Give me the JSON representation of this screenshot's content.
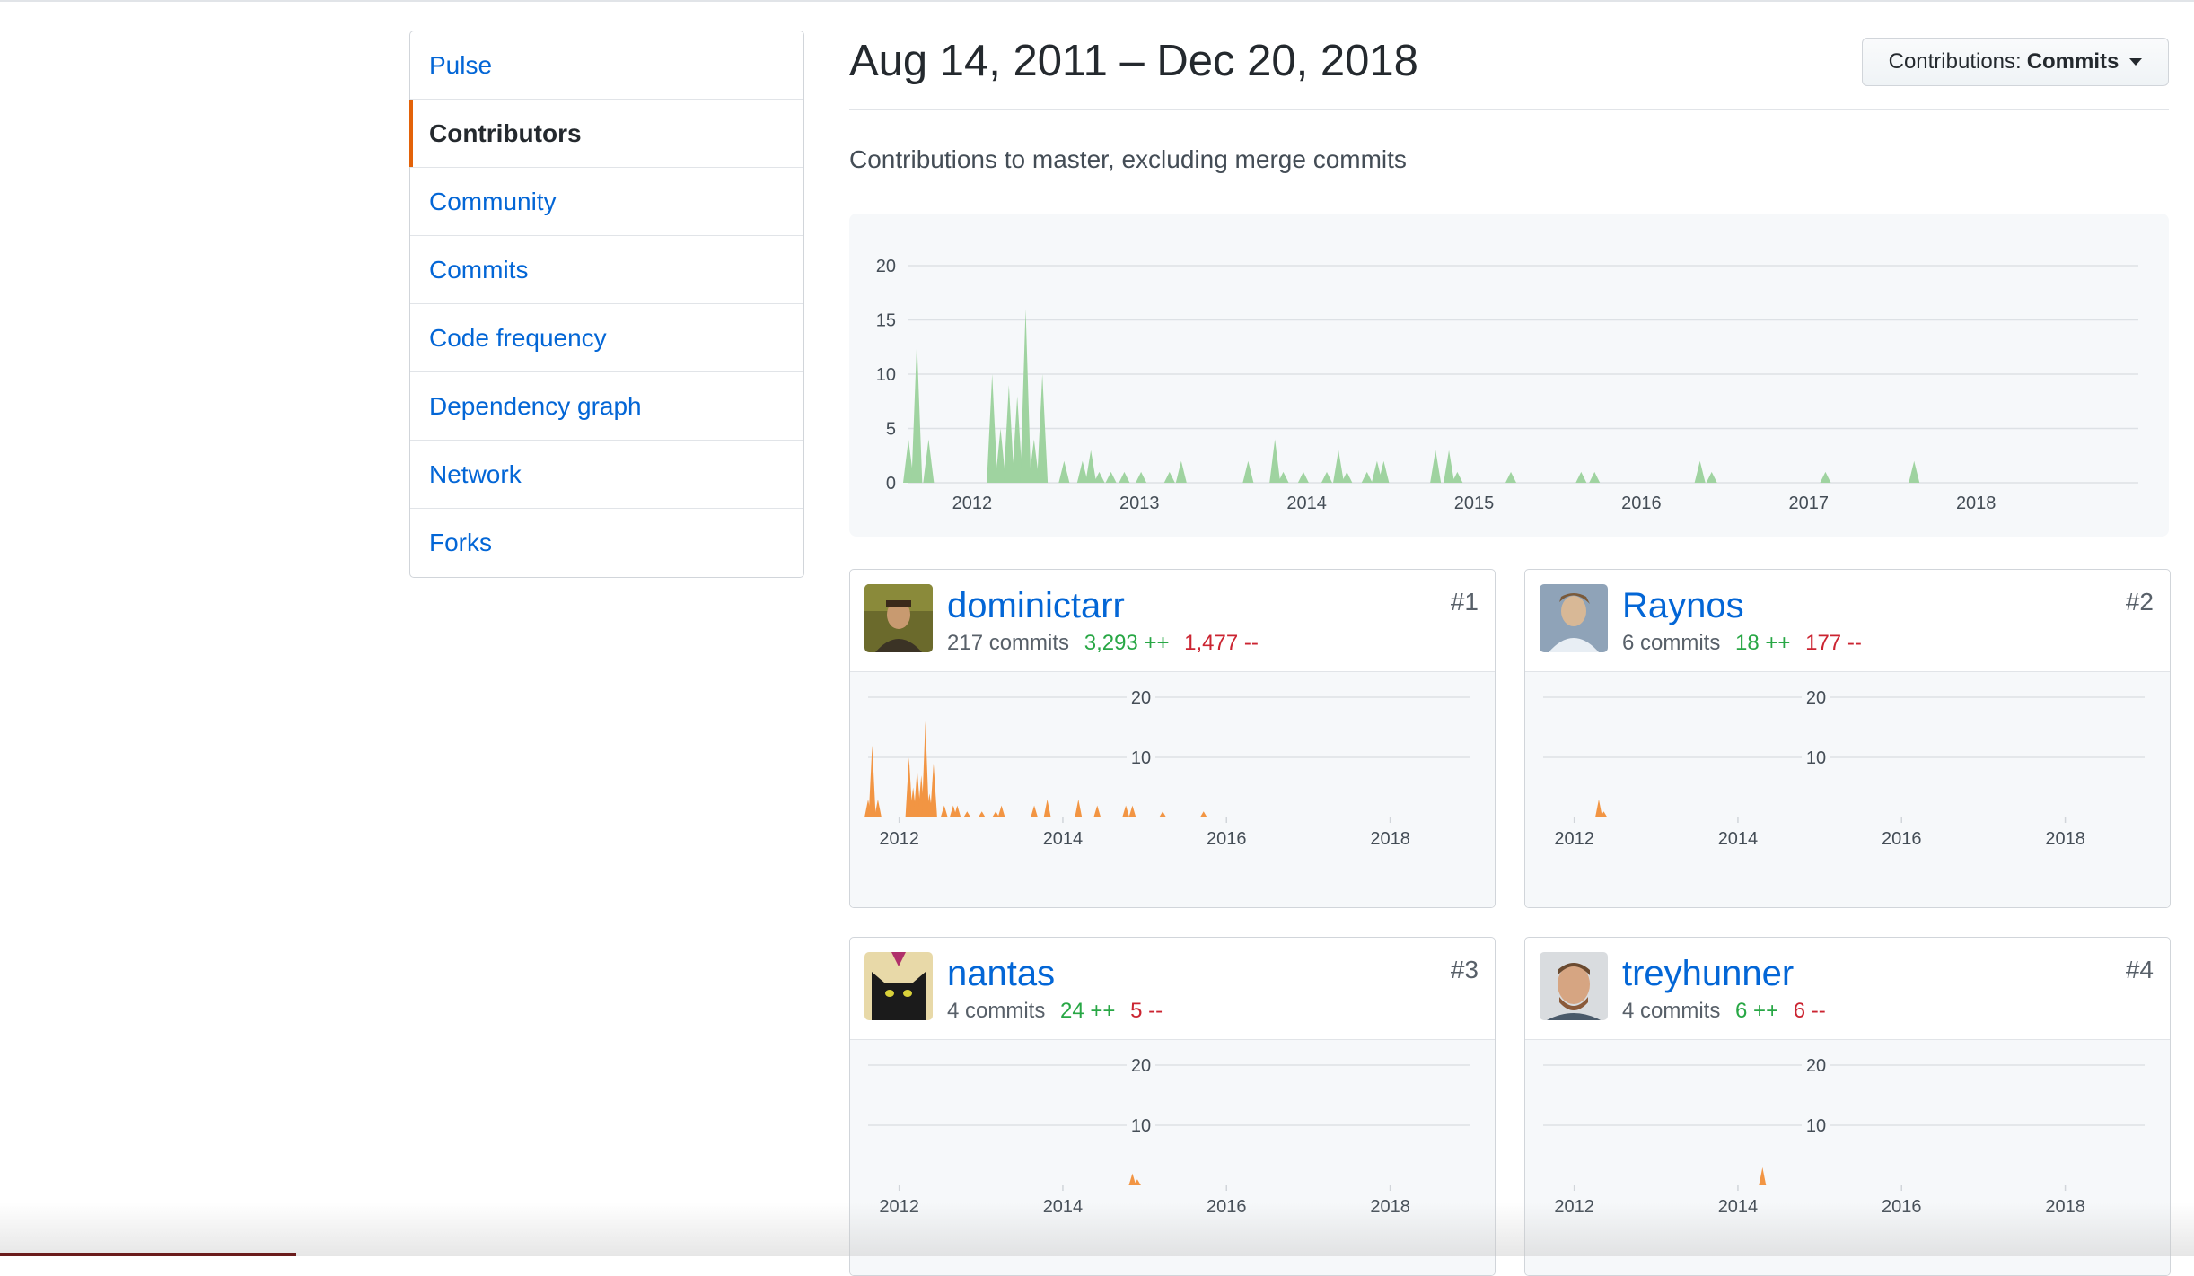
{
  "sidebar": {
    "items": [
      {
        "label": "Pulse",
        "selected": false
      },
      {
        "label": "Contributors",
        "selected": true
      },
      {
        "label": "Community",
        "selected": false
      },
      {
        "label": "Commits",
        "selected": false
      },
      {
        "label": "Code frequency",
        "selected": false
      },
      {
        "label": "Dependency graph",
        "selected": false
      },
      {
        "label": "Network",
        "selected": false
      },
      {
        "label": "Forks",
        "selected": false
      }
    ]
  },
  "header": {
    "date_range": "Aug 14, 2011 – Dec 20, 2018",
    "contributions_label": "Contributions:",
    "contributions_value": "Commits",
    "subtitle": "Contributions to master, excluding merge commits"
  },
  "colors": {
    "overall": "#9fd3a0",
    "contributor": "#f29543",
    "link": "#0366d6",
    "additions": "#28a745",
    "deletions": "#cb2431",
    "selected_accent": "#e36209"
  },
  "chart_data": [
    {
      "type": "area",
      "title": "",
      "xlabel": "",
      "ylabel": "",
      "x_range": [
        2011.62,
        2018.97
      ],
      "ylim": [
        0,
        20
      ],
      "yticks": [
        0,
        5,
        10,
        15,
        20
      ],
      "xticks": [
        2012,
        2013,
        2014,
        2015,
        2016,
        2017,
        2018
      ],
      "grid": true,
      "series": [
        {
          "points": [
            [
              2011.62,
              4
            ],
            [
              2011.67,
              13
            ],
            [
              2011.74,
              4
            ],
            [
              2012.12,
              10
            ],
            [
              2012.17,
              5
            ],
            [
              2012.22,
              9
            ],
            [
              2012.27,
              8
            ],
            [
              2012.32,
              16
            ],
            [
              2012.37,
              4
            ],
            [
              2012.42,
              10
            ],
            [
              2012.55,
              2
            ],
            [
              2012.66,
              2
            ],
            [
              2012.71,
              3
            ],
            [
              2012.76,
              1
            ],
            [
              2012.83,
              1
            ],
            [
              2012.91,
              1
            ],
            [
              2013.01,
              1
            ],
            [
              2013.18,
              1
            ],
            [
              2013.25,
              2
            ],
            [
              2013.65,
              2
            ],
            [
              2013.81,
              4
            ],
            [
              2013.86,
              1
            ],
            [
              2013.98,
              1
            ],
            [
              2014.12,
              1
            ],
            [
              2014.19,
              3
            ],
            [
              2014.24,
              1
            ],
            [
              2014.36,
              1
            ],
            [
              2014.42,
              2
            ],
            [
              2014.46,
              2
            ],
            [
              2014.77,
              3
            ],
            [
              2014.85,
              3
            ],
            [
              2014.9,
              1
            ],
            [
              2015.22,
              1
            ],
            [
              2015.64,
              1
            ],
            [
              2015.72,
              1
            ],
            [
              2016.35,
              2
            ],
            [
              2016.42,
              1
            ],
            [
              2017.1,
              1
            ],
            [
              2017.63,
              2
            ]
          ]
        }
      ]
    },
    {
      "type": "area",
      "title": "",
      "xlabel": "",
      "ylabel": "",
      "x_range": [
        2011.62,
        2018.97
      ],
      "ylim": [
        0,
        20
      ],
      "yticks": [
        10,
        20
      ],
      "xticks": [
        2012,
        2014,
        2016,
        2018
      ],
      "grid": true,
      "series": [
        {
          "name": "dominictarr",
          "points": [
            [
              2011.62,
              3
            ],
            [
              2011.67,
              12
            ],
            [
              2011.74,
              3
            ],
            [
              2012.12,
              10
            ],
            [
              2012.17,
              5
            ],
            [
              2012.22,
              8
            ],
            [
              2012.27,
              7
            ],
            [
              2012.32,
              16
            ],
            [
              2012.37,
              4
            ],
            [
              2012.42,
              9
            ],
            [
              2012.55,
              2
            ],
            [
              2012.66,
              2
            ],
            [
              2012.71,
              2
            ],
            [
              2012.83,
              1
            ],
            [
              2013.01,
              1
            ],
            [
              2013.18,
              1
            ],
            [
              2013.25,
              2
            ],
            [
              2013.65,
              2
            ],
            [
              2013.81,
              3
            ],
            [
              2014.19,
              3
            ],
            [
              2014.42,
              2
            ],
            [
              2014.77,
              2
            ],
            [
              2014.85,
              2
            ],
            [
              2015.22,
              1
            ],
            [
              2015.72,
              1
            ]
          ]
        }
      ]
    },
    {
      "type": "area",
      "title": "",
      "xlabel": "",
      "ylabel": "",
      "x_range": [
        2011.62,
        2018.97
      ],
      "ylim": [
        0,
        20
      ],
      "yticks": [
        10,
        20
      ],
      "xticks": [
        2012,
        2014,
        2016,
        2018
      ],
      "grid": true,
      "series": [
        {
          "name": "Raynos",
          "points": [
            [
              2012.3,
              3
            ],
            [
              2012.36,
              1
            ]
          ]
        }
      ]
    },
    {
      "type": "area",
      "title": "",
      "xlabel": "",
      "ylabel": "",
      "x_range": [
        2011.62,
        2018.97
      ],
      "ylim": [
        0,
        20
      ],
      "yticks": [
        10,
        20
      ],
      "xticks": [
        2012,
        2014,
        2016,
        2018
      ],
      "grid": true,
      "series": [
        {
          "name": "nantas",
          "points": [
            [
              2014.85,
              2
            ],
            [
              2014.91,
              1
            ]
          ]
        }
      ]
    },
    {
      "type": "area",
      "title": "",
      "xlabel": "",
      "ylabel": "",
      "x_range": [
        2011.62,
        2018.97
      ],
      "ylim": [
        0,
        20
      ],
      "yticks": [
        10,
        20
      ],
      "xticks": [
        2012,
        2014,
        2016,
        2018
      ],
      "grid": true,
      "series": [
        {
          "name": "treyhunner",
          "points": [
            [
              2014.3,
              3
            ]
          ]
        }
      ]
    }
  ],
  "contributors": [
    {
      "username": "dominictarr",
      "commits": "217 commits",
      "additions": "3,293 ++",
      "deletions": "1,477 --",
      "rank": "#1"
    },
    {
      "username": "Raynos",
      "commits": "6 commits",
      "additions": "18 ++",
      "deletions": "177 --",
      "rank": "#2"
    },
    {
      "username": "nantas",
      "commits": "4 commits",
      "additions": "24 ++",
      "deletions": "5 --",
      "rank": "#3"
    },
    {
      "username": "treyhunner",
      "commits": "4 commits",
      "additions": "6 ++",
      "deletions": "6 --",
      "rank": "#4"
    }
  ]
}
